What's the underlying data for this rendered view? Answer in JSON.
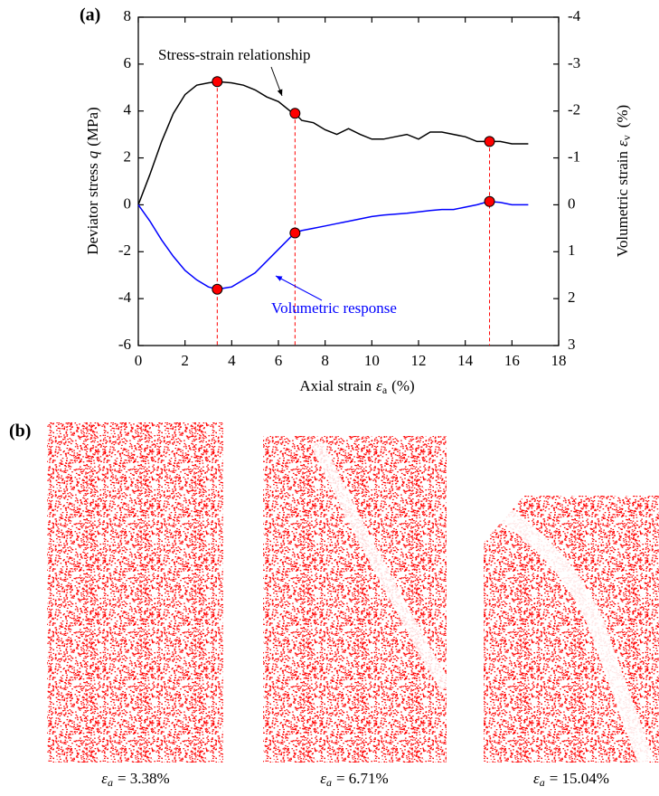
{
  "panel_labels": {
    "a": "(a)",
    "b": "(b)"
  },
  "chart_data": {
    "type": "line",
    "xlabel": {
      "text": "Axial strain",
      "symbol": "ε",
      "subscript": "a",
      "unit": "(%)"
    },
    "ylabel": {
      "text": "Deviator stress",
      "symbol": "q",
      "unit": "(MPa)"
    },
    "y2label": {
      "text": "Volumetric strain",
      "symbol": "ε",
      "subscript": "v",
      "unit": "(%)"
    },
    "x": [
      0,
      0.5,
      1,
      1.5,
      2,
      2.5,
      3,
      3.38,
      4,
      4.5,
      5,
      5.5,
      6,
      6.5,
      6.71,
      7,
      7.5,
      8,
      8.5,
      9,
      9.5,
      10,
      10.5,
      11,
      11.5,
      12,
      12.5,
      13,
      13.5,
      14,
      14.5,
      15,
      15.5,
      16,
      16.7
    ],
    "series": [
      {
        "name": "Stress-strain relationship",
        "color": "#000000",
        "axis": "y",
        "values": [
          0,
          1.3,
          2.7,
          3.9,
          4.7,
          5.1,
          5.2,
          5.25,
          5.2,
          5.1,
          4.9,
          4.6,
          4.4,
          4.0,
          3.9,
          3.6,
          3.5,
          3.2,
          3.0,
          3.25,
          3.0,
          2.8,
          2.8,
          2.9,
          3.0,
          2.8,
          3.1,
          3.1,
          3.0,
          2.9,
          2.7,
          2.7,
          2.7,
          2.6,
          2.6
        ]
      },
      {
        "name": "Volumetric response",
        "color": "#0000ff",
        "axis": "y2",
        "values": [
          0,
          0.35,
          0.75,
          1.1,
          1.4,
          1.6,
          1.75,
          1.8,
          1.75,
          1.6,
          1.45,
          1.2,
          0.95,
          0.7,
          0.6,
          0.55,
          0.5,
          0.45,
          0.4,
          0.35,
          0.3,
          0.25,
          0.22,
          0.2,
          0.18,
          0.15,
          0.12,
          0.1,
          0.1,
          0.05,
          0.0,
          -0.07,
          -0.05,
          0.0,
          0.0
        ]
      }
    ],
    "highlights": {
      "color": "#ff0000",
      "x": [
        3.38,
        6.71,
        15.04
      ],
      "stress": [
        5.25,
        3.9,
        2.7
      ],
      "volumetric": [
        1.8,
        0.6,
        -0.07
      ]
    },
    "xlim": [
      0,
      18
    ],
    "xticks": [
      0,
      2,
      4,
      6,
      8,
      10,
      12,
      14,
      16,
      18
    ],
    "ylim": [
      -6,
      8
    ],
    "yticks": [
      -6,
      -4,
      -2,
      0,
      2,
      4,
      6,
      8
    ],
    "y2lim": [
      3,
      -4
    ],
    "y2ticks": [
      -4,
      -3,
      -2,
      -1,
      0,
      1,
      2,
      3
    ]
  },
  "snapshots": {
    "symbol": "ε",
    "subscript": "a",
    "labels": [
      "= 3.38%",
      "= 6.71%",
      "= 15.04%"
    ]
  }
}
